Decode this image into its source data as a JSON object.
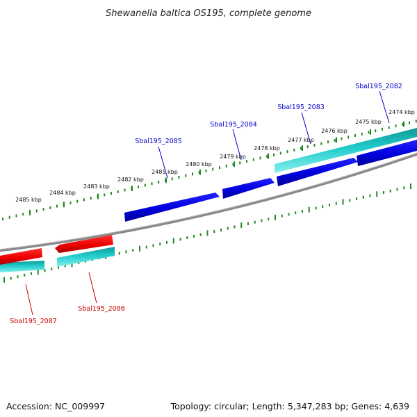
{
  "title": "Shewanella baltica OS195, complete genome",
  "footer": {
    "accession": "Accession: NC_009997",
    "summary": "Topology: circular; Length: 5,347,283 bp; Genes: 4,639"
  },
  "colors": {
    "forward_cds": "#0000dd",
    "reverse_cds": "#ee0000",
    "gene_feature": "#22cccc",
    "backbone": "#888888",
    "ticks": "#228822",
    "forward_label": "#0000cc",
    "reverse_label": "#cc0000"
  },
  "ruler": {
    "unit": "kbp",
    "labels": [
      "2474 kbp",
      "2475 kbp",
      "2476 kbp",
      "2477 kbp",
      "2478 kbp",
      "2479 kbp",
      "2480 kbp",
      "2481 kbp",
      "2482 kbp",
      "2483 kbp",
      "2484 kbp",
      "2485 kbp"
    ]
  },
  "genes": {
    "forward": [
      "Sbal195_2082",
      "Sbal195_2083",
      "Sbal195_2084",
      "Sbal195_2085"
    ],
    "reverse": [
      "Sbal195_2086",
      "Sbal195_2087"
    ]
  }
}
